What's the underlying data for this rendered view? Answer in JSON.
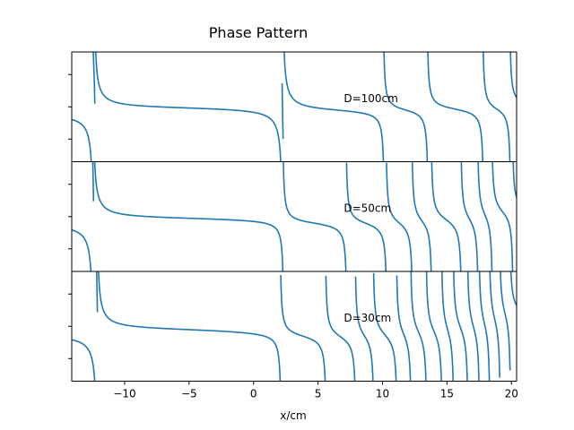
{
  "chart_data": {
    "type": "line",
    "title": "Phase Pattern",
    "xlabel": "x/cm",
    "ylabel": "",
    "xlim": [
      -14.1,
      20.4
    ],
    "x_ticks": [
      -10,
      -5,
      0,
      5,
      10,
      15,
      20
    ],
    "x_tick_labels": [
      "−10",
      "−5",
      "0",
      "5",
      "10",
      "15",
      "20"
    ],
    "ylim": [
      -3.4,
      3.4
    ],
    "y_ticks": [
      -2,
      0,
      2
    ],
    "series": [
      {
        "name": "D=100cm",
        "label": "D=100cm",
        "color": "#1f77b4",
        "left_value": -0.3,
        "singularities": [
          {
            "x": -12.5,
            "kind": "down"
          },
          {
            "x": -12.3,
            "kind": "up"
          },
          {
            "x": 2.2,
            "kind": "up"
          },
          {
            "x": 2.3,
            "kind": "up"
          },
          {
            "x": 10.1,
            "kind": "up"
          },
          {
            "x": 13.5,
            "kind": "up"
          },
          {
            "x": 17.8,
            "kind": "up"
          },
          {
            "x": 19.9,
            "kind": "up"
          }
        ],
        "plateaus": [
          -0.3,
          2.8,
          0.0,
          -0.2,
          -0.2,
          -0.2,
          -0.2,
          -0.3,
          -0.3
        ],
        "amplitude": 0.6
      },
      {
        "name": "D=50cm",
        "label": "D=50cm",
        "color": "#1f77b4",
        "left_value": -0.3,
        "singularities": [
          {
            "x": -12.5,
            "kind": "down"
          },
          {
            "x": -12.4,
            "kind": "up"
          },
          {
            "x": 2.3,
            "kind": "up"
          },
          {
            "x": 7.2,
            "kind": "up"
          },
          {
            "x": 10.3,
            "kind": "up"
          },
          {
            "x": 12.3,
            "kind": "up"
          },
          {
            "x": 13.8,
            "kind": "up"
          },
          {
            "x": 16.1,
            "kind": "up"
          },
          {
            "x": 17.4,
            "kind": "up"
          },
          {
            "x": 18.5,
            "kind": "up"
          },
          {
            "x": 20.1,
            "kind": "up"
          }
        ],
        "plateaus": [
          -0.3,
          2.8,
          0.0,
          -0.2,
          -0.2,
          -0.2,
          -0.2,
          -0.2,
          -0.2,
          -0.2,
          -0.2,
          -0.3
        ],
        "amplitude": 0.6
      },
      {
        "name": "D=30cm",
        "label": "D=30cm",
        "color": "#1f77b4",
        "left_value": -0.3,
        "singularities": [
          {
            "x": -12.2,
            "kind": "down"
          },
          {
            "x": -12.1,
            "kind": "up"
          },
          {
            "x": 2.1,
            "kind": "up"
          },
          {
            "x": 5.6,
            "kind": "up"
          },
          {
            "x": 7.9,
            "kind": "up"
          },
          {
            "x": 9.3,
            "kind": "up"
          },
          {
            "x": 11.1,
            "kind": "up"
          },
          {
            "x": 12.2,
            "kind": "up"
          },
          {
            "x": 13.4,
            "kind": "up"
          },
          {
            "x": 14.6,
            "kind": "up"
          },
          {
            "x": 15.5,
            "kind": "up"
          },
          {
            "x": 16.6,
            "kind": "up"
          },
          {
            "x": 17.5,
            "kind": "up"
          },
          {
            "x": 18.3,
            "kind": "up"
          },
          {
            "x": 19.1,
            "kind": "up"
          },
          {
            "x": 19.9,
            "kind": "up"
          }
        ],
        "plateaus": [
          -0.3,
          2.8,
          0.0,
          -0.2,
          -0.2,
          -0.2,
          -0.2,
          -0.2,
          -0.2,
          -0.2,
          -0.2,
          -0.2,
          -0.2,
          -0.2,
          -0.2,
          -0.2,
          -0.3
        ],
        "amplitude": 0.6
      }
    ]
  }
}
